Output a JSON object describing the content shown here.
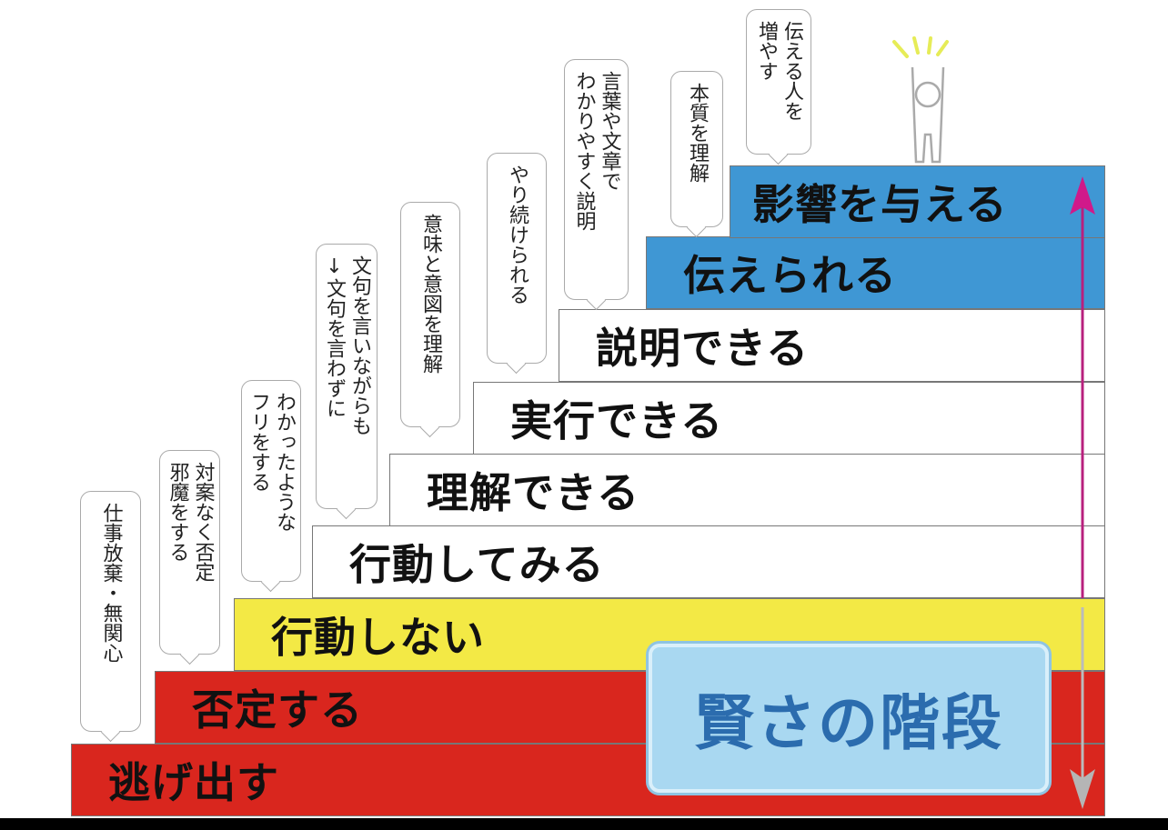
{
  "title": "賢さの階段",
  "colors": {
    "red": "#d9261e",
    "yellow": "#f3e945",
    "white": "#ffffff",
    "blue": "#3f97d4",
    "title_text": "#2b6cae",
    "up_arrow": "#d0198a",
    "down_arrow": "#b5b5b5"
  },
  "steps": [
    {
      "label": "逃げ出す",
      "color": "red"
    },
    {
      "label": "否定する",
      "color": "red"
    },
    {
      "label": "行動しない",
      "color": "yellow"
    },
    {
      "label": "行動してみる",
      "color": "white"
    },
    {
      "label": "理解できる",
      "color": "white"
    },
    {
      "label": "実行できる",
      "color": "white"
    },
    {
      "label": "説明できる",
      "color": "white"
    },
    {
      "label": "伝えられる",
      "color": "blue"
    },
    {
      "label": "影響を与える",
      "color": "blue"
    }
  ],
  "callouts": [
    "仕事放棄・無関心",
    "対案なく否定\n邪魔をする",
    "わかったような\nフリをする",
    "文句を言いながらも\n↓文句を言わずに",
    "意味と意図を理解",
    "やり続けられる",
    "言葉や文章で\nわかりやすく説明",
    "本質を理解",
    "伝える人を\n増やす"
  ],
  "icons": [
    "person-cheering-icon",
    "arrow-up-icon",
    "arrow-down-icon"
  ]
}
